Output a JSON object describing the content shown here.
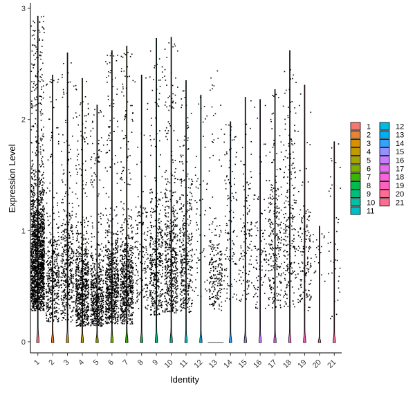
{
  "chart_data": {
    "type": "violin",
    "xlabel": "Identity",
    "ylabel": "Expression Level",
    "ylim": [
      -0.1,
      3.05
    ],
    "yticks": [
      0,
      1,
      2,
      3
    ],
    "categories": [
      "1",
      "2",
      "3",
      "4",
      "5",
      "6",
      "7",
      "8",
      "9",
      "10",
      "11",
      "12",
      "13",
      "14",
      "15",
      "16",
      "17",
      "18",
      "19",
      "20",
      "21"
    ],
    "colors": [
      "#F8766D",
      "#EA8331",
      "#D89000",
      "#C09B00",
      "#A3A500",
      "#7CAE00",
      "#39B600",
      "#00BB4E",
      "#00BF7D",
      "#00C1A3",
      "#00BFC4",
      "#00BAE0",
      "#00B0F6",
      "#35A2FF",
      "#9590FF",
      "#C77CFF",
      "#E76BF3",
      "#FA62DB",
      "#FF62BC",
      "#FF6C91",
      "#FF6C91"
    ],
    "max_values": [
      2.93,
      2.4,
      2.6,
      2.37,
      2.13,
      2.62,
      2.66,
      2.4,
      2.73,
      2.74,
      2.35,
      2.22,
      2.48,
      1.98,
      2.2,
      2.18,
      2.27,
      2.62,
      2.31,
      1.04,
      1.8
    ],
    "dot_counts": [
      1800,
      420,
      430,
      700,
      560,
      720,
      720,
      150,
      420,
      520,
      360,
      60,
      230,
      120,
      120,
      100,
      260,
      240,
      150,
      20,
      40
    ],
    "dot_min": [
      0.28,
      0.18,
      0.18,
      0.14,
      0.14,
      0.16,
      0.16,
      0.28,
      0.24,
      0.26,
      0.26,
      0.4,
      0.28,
      0.36,
      0.36,
      0.3,
      0.3,
      0.3,
      0.28,
      0.5,
      0.2
    ],
    "dot_center": [
      0.75,
      0.55,
      0.6,
      0.45,
      0.4,
      0.5,
      0.5,
      0.7,
      0.65,
      0.7,
      0.75,
      1.2,
      0.6,
      1.1,
      0.9,
      0.8,
      0.85,
      0.95,
      0.7,
      0.85,
      0.9
    ],
    "legend": {
      "position": "right",
      "columns": 2,
      "labels": [
        "1",
        "2",
        "3",
        "4",
        "5",
        "6",
        "7",
        "8",
        "9",
        "10",
        "11",
        "12",
        "13",
        "14",
        "15",
        "16",
        "17",
        "18",
        "19",
        "20",
        "21"
      ]
    }
  }
}
